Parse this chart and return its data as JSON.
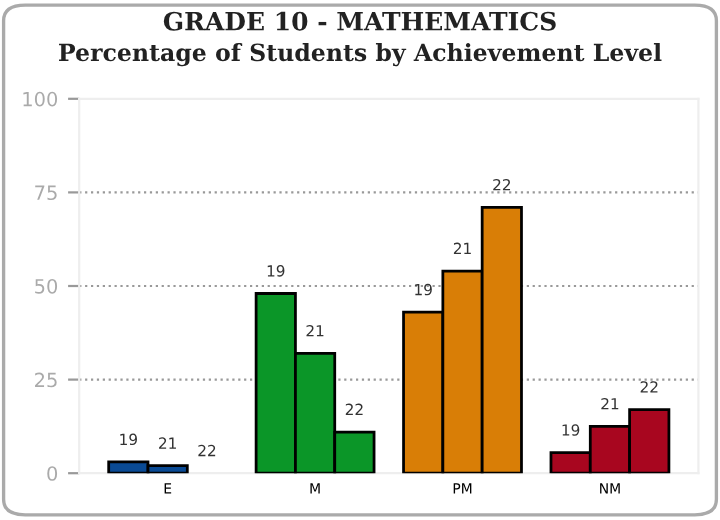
{
  "chart_data": {
    "type": "bar",
    "title": "GRADE 10 - MATHEMATICS",
    "subtitle": "Percentage of Students by Achievement Level",
    "categories": [
      "E",
      "M",
      "PM",
      "NM"
    ],
    "series": [
      {
        "name": "19",
        "colors": [
          "#0a4a94",
          "#0b9628",
          "#d97e06",
          "#a8061f"
        ],
        "values": [
          3,
          48,
          43,
          5.5
        ]
      },
      {
        "name": "21",
        "colors": [
          "#0a4a94",
          "#0b9628",
          "#d97e06",
          "#a8061f"
        ],
        "values": [
          2,
          32,
          54,
          12.5
        ]
      },
      {
        "name": "22",
        "colors": [
          "#0a4a94",
          "#0b9628",
          "#d97e06",
          "#a8061f"
        ],
        "values": [
          0,
          11,
          71,
          17
        ]
      }
    ],
    "ylim": [
      0,
      100
    ],
    "yticks": [
      0,
      25,
      50,
      75,
      100
    ],
    "grid": "y",
    "legend": false
  }
}
